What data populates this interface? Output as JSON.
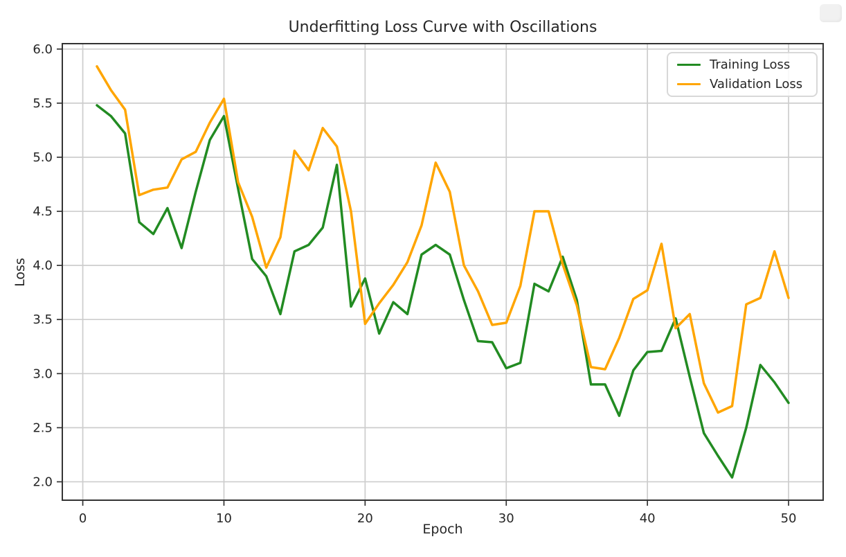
{
  "window": {
    "background": "#ffffff"
  },
  "chart_data": {
    "type": "line",
    "title": "Underfitting Loss Curve with Oscillations",
    "xlabel": "Epoch",
    "ylabel": "Loss",
    "grid": true,
    "legend_position": "upper right",
    "xlim": [
      -1.45,
      52.45
    ],
    "ylim": [
      1.83,
      6.05
    ],
    "xticks": [
      0,
      10,
      20,
      30,
      40,
      50
    ],
    "yticks": [
      2.0,
      2.5,
      3.0,
      3.5,
      4.0,
      4.5,
      5.0,
      5.5,
      6.0
    ],
    "x": [
      1,
      2,
      3,
      4,
      5,
      6,
      7,
      8,
      9,
      10,
      11,
      12,
      13,
      14,
      15,
      16,
      17,
      18,
      19,
      20,
      21,
      22,
      23,
      24,
      25,
      26,
      27,
      28,
      29,
      30,
      31,
      32,
      33,
      34,
      35,
      36,
      37,
      38,
      39,
      40,
      41,
      42,
      43,
      44,
      45,
      46,
      47,
      48,
      49,
      50
    ],
    "series": [
      {
        "name": "Training Loss",
        "color": "#228B22",
        "values": [
          5.48,
          5.38,
          5.22,
          4.4,
          4.29,
          4.53,
          4.16,
          4.68,
          5.16,
          5.38,
          4.71,
          4.06,
          3.9,
          3.55,
          4.13,
          4.19,
          4.35,
          4.93,
          3.62,
          3.88,
          3.37,
          3.66,
          3.55,
          4.1,
          4.19,
          4.1,
          3.68,
          3.3,
          3.29,
          3.05,
          3.1,
          3.83,
          3.76,
          4.08,
          3.68,
          2.9,
          2.9,
          2.61,
          3.03,
          3.2,
          3.21,
          3.51,
          2.97,
          2.45,
          2.24,
          2.04,
          2.5,
          3.08,
          2.92,
          2.73
        ]
      },
      {
        "name": "Validation Loss",
        "color": "#FFA500",
        "values": [
          5.84,
          5.62,
          5.44,
          4.65,
          4.7,
          4.72,
          4.98,
          5.05,
          5.32,
          5.54,
          4.77,
          4.45,
          3.98,
          4.26,
          5.06,
          4.88,
          5.27,
          5.1,
          4.5,
          3.46,
          3.65,
          3.82,
          4.03,
          4.37,
          4.95,
          4.68,
          4.0,
          3.76,
          3.45,
          3.47,
          3.81,
          4.5,
          4.5,
          4.01,
          3.63,
          3.06,
          3.04,
          3.33,
          3.69,
          3.77,
          4.2,
          3.42,
          3.55,
          2.91,
          2.64,
          2.7,
          3.64,
          3.7,
          4.13,
          3.7
        ]
      }
    ]
  },
  "style": {
    "grid_color": "#cdcdcd",
    "spine_color": "#333333",
    "tick_color": "#333333",
    "text_color": "#262626",
    "plot_background": "#ffffff"
  }
}
